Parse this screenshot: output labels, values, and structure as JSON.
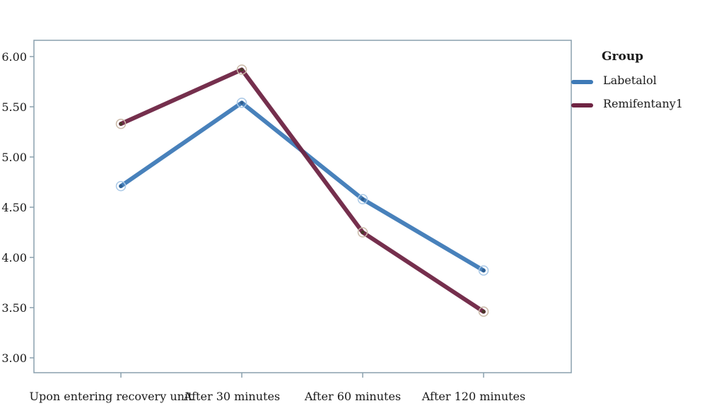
{
  "chart_data": {
    "type": "line",
    "title": "",
    "xlabel": "",
    "ylabel": "",
    "categories": [
      "Upon entering recovery unit",
      "After 30 minutes",
      "After 60 minutes",
      "After 120 minutes"
    ],
    "ylim": [
      3.0,
      6.0
    ],
    "yticks": [
      "3.00",
      "3.50",
      "4.00",
      "4.50",
      "5.00",
      "5.50",
      "6.00"
    ],
    "series": [
      {
        "name": "Labetalol",
        "color": "#3e7ab7",
        "values": [
          4.71,
          5.54,
          4.58,
          3.87
        ]
      },
      {
        "name": "Remifentany1",
        "color": "#6e2443",
        "values": [
          5.33,
          5.87,
          4.25,
          3.46
        ]
      }
    ],
    "legend": {
      "title": "Group",
      "position": "right"
    },
    "grid": false,
    "plot_background": "#ffffff",
    "frame_color": "#8aa0ad"
  }
}
